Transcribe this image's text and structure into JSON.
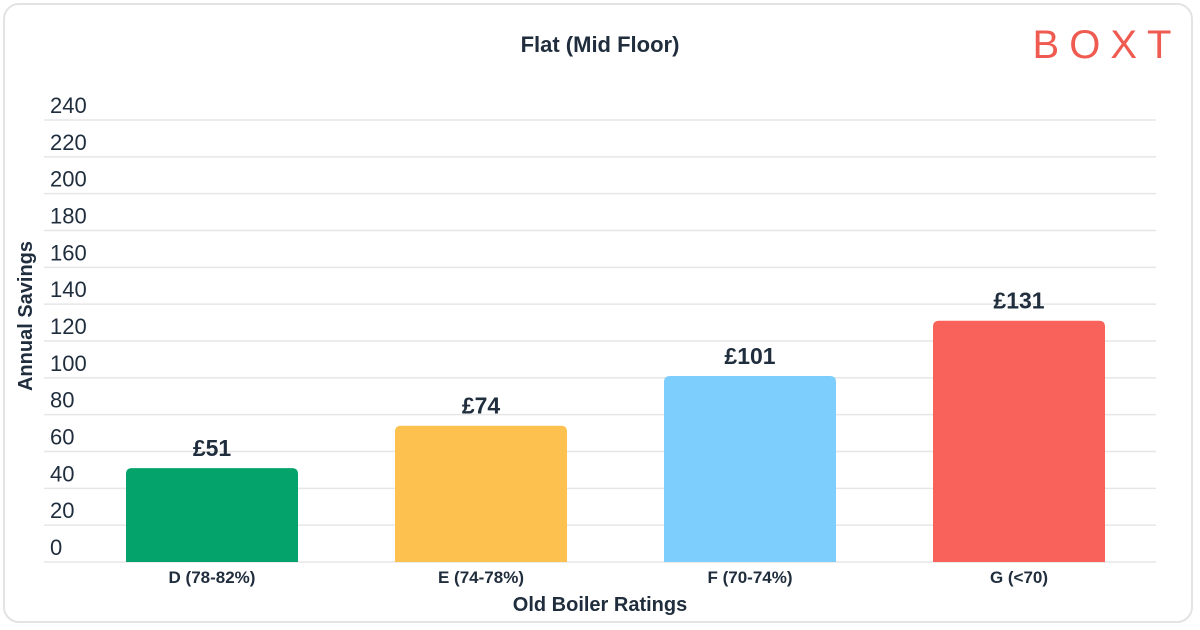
{
  "brand": {
    "name": "BOXT",
    "color": "#ef5b50"
  },
  "chart_data": {
    "type": "bar",
    "title": "Flat (Mid Floor)",
    "xlabel": "Old Boiler Ratings",
    "ylabel": "Annual Savings",
    "categories": [
      "D (78-82%)",
      "E (74-78%)",
      "F (70-74%)",
      "G (<70)"
    ],
    "values": [
      51,
      74,
      101,
      131
    ],
    "data_labels": [
      "£51",
      "£74",
      "£101",
      "£131"
    ],
    "colors": [
      "#04a36b",
      "#fdc150",
      "#7dcefd",
      "#f8625b"
    ],
    "ylim": [
      0,
      240
    ],
    "yticks": [
      "0",
      "20",
      "40",
      "60",
      "80",
      "100",
      "120",
      "140",
      "160",
      "180",
      "200",
      "220",
      "240"
    ],
    "grid": true,
    "legend": "none"
  }
}
